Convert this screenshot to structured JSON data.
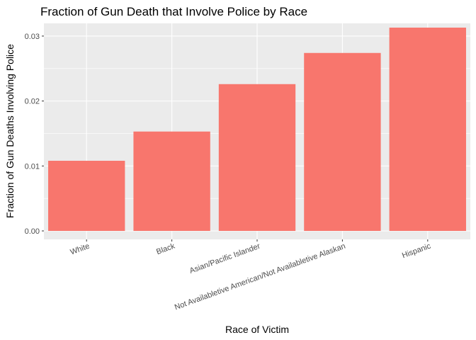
{
  "chart_data": {
    "type": "bar",
    "title": "Fraction of Gun Death that Involve Police by Race",
    "xlabel": "Race of Victim",
    "ylabel": "Fraction of Gun Deaths Involving Police",
    "categories": [
      "White",
      "Black",
      "Asian/Pacific Islander",
      "Not Availabletive American/Not Availabletive Alaskan",
      "Hispanic"
    ],
    "values": [
      0.0108,
      0.0153,
      0.0226,
      0.0274,
      0.0313
    ],
    "ylim": [
      0,
      0.0325
    ],
    "yticks": [
      0.0,
      0.01,
      0.02,
      0.03
    ],
    "ytick_labels": [
      "0.00",
      "0.01",
      "0.02",
      "0.03"
    ],
    "bar_color": "#f8766d",
    "panel_color": "#ebebeb",
    "grid": true,
    "legend": "none"
  }
}
